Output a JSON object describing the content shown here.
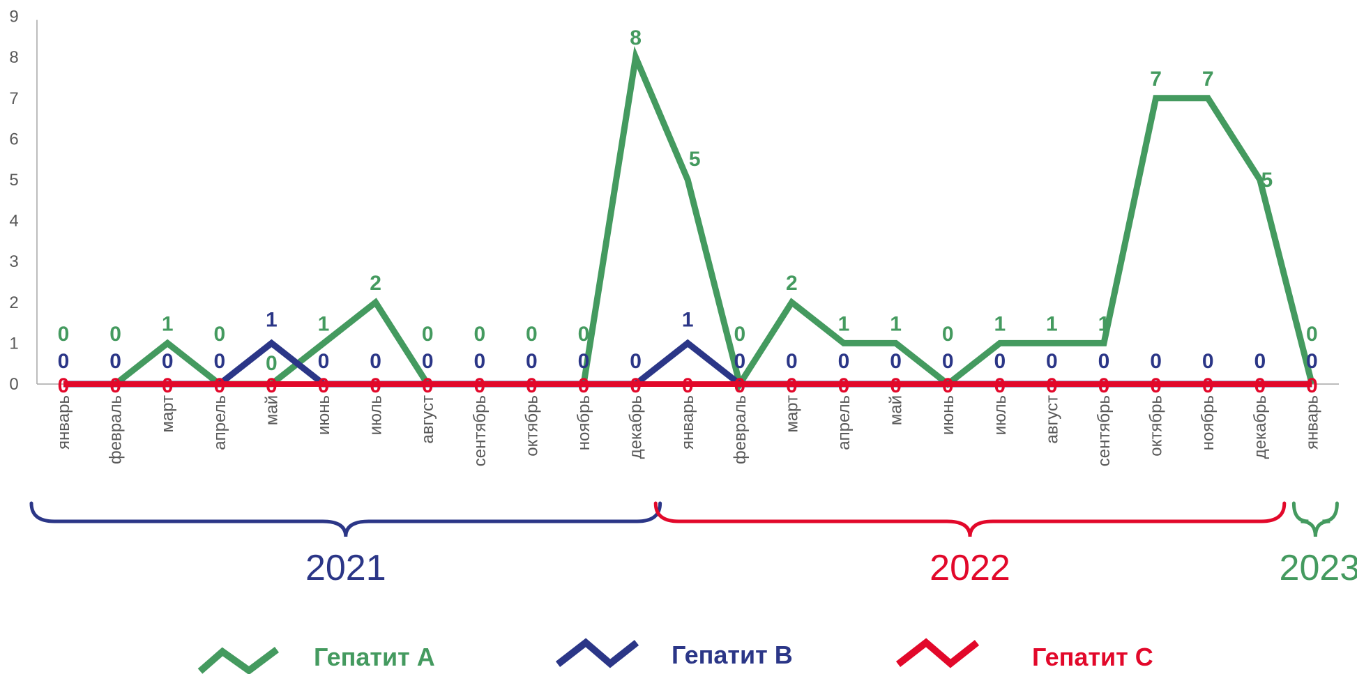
{
  "colors": {
    "hep_a": "#449A5F",
    "hep_b": "#2B3687",
    "hep_c": "#E2082A",
    "axis": "#A6A6A6",
    "tick_text": "#595959"
  },
  "chart_data": {
    "type": "line",
    "categories": [
      "январь",
      "февраль",
      "март",
      "апрель",
      "май",
      "июнь",
      "июль",
      "август",
      "сентябрь",
      "октябрь",
      "ноябрь",
      "декабрь",
      "январь",
      "февраль",
      "март",
      "апрель",
      "май",
      "июнь",
      "июль",
      "август",
      "сентябрь",
      "октябрь",
      "ноябрь",
      "декабрь",
      "январь"
    ],
    "series": [
      {
        "name": "Гепатит А",
        "values": [
          0,
          0,
          1,
          0,
          0,
          1,
          2,
          0,
          0,
          0,
          0,
          8,
          5,
          0,
          2,
          1,
          1,
          0,
          1,
          1,
          1,
          7,
          7,
          5,
          0
        ]
      },
      {
        "name": "Гепатит В",
        "values": [
          0,
          0,
          0,
          0,
          1,
          0,
          0,
          0,
          0,
          0,
          0,
          0,
          1,
          0,
          0,
          0,
          0,
          0,
          0,
          0,
          0,
          0,
          0,
          0,
          0
        ]
      },
      {
        "name": "Гепатит С",
        "values": [
          0,
          0,
          0,
          0,
          0,
          0,
          0,
          0,
          0,
          0,
          0,
          0,
          0,
          0,
          0,
          0,
          0,
          0,
          0,
          0,
          0,
          0,
          0,
          0,
          0
        ]
      }
    ],
    "ylim": [
      0,
      9
    ],
    "yticks": [
      0,
      1,
      2,
      3,
      4,
      5,
      6,
      7,
      8,
      9
    ],
    "year_groups": [
      {
        "label": "2021",
        "start": 0,
        "end": 11
      },
      {
        "label": "2022",
        "start": 12,
        "end": 23
      },
      {
        "label": "2023",
        "start": 24,
        "end": 24
      }
    ],
    "legend_placement": "bottom",
    "grid": false
  }
}
